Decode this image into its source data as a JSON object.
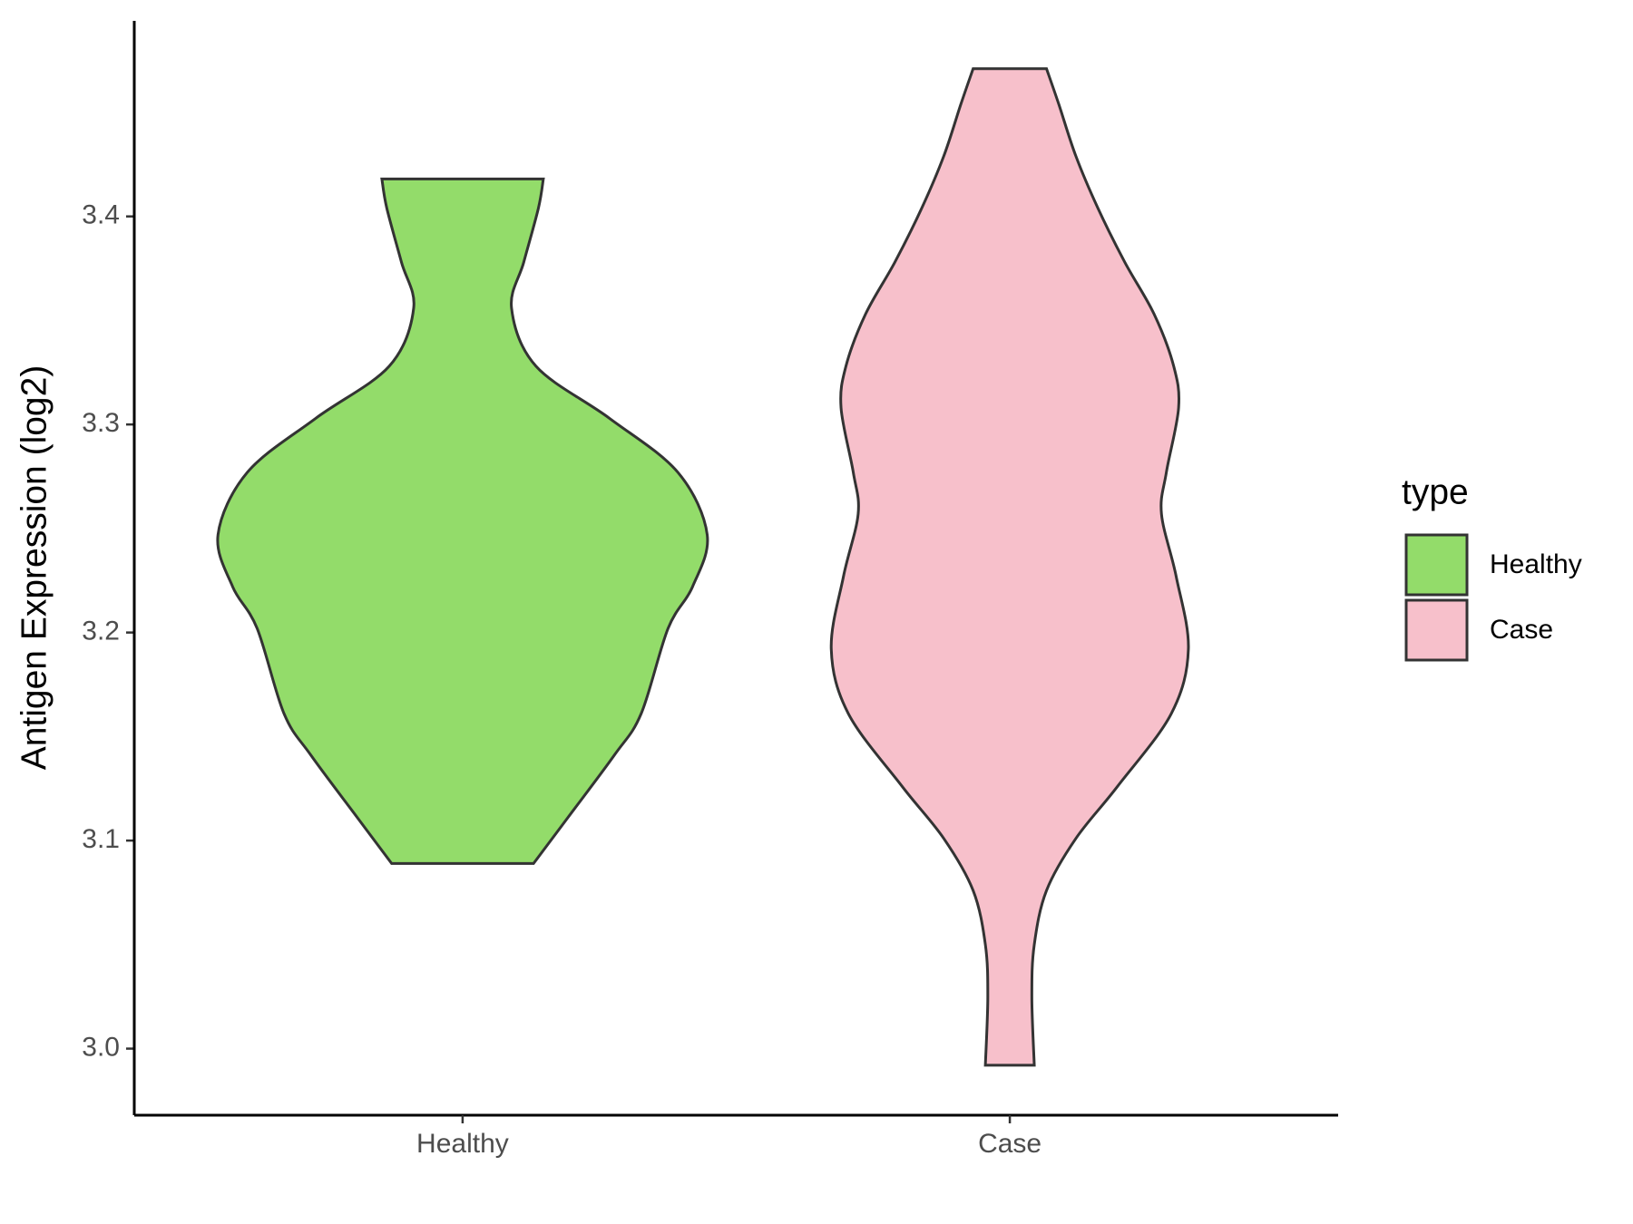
{
  "chart_data": {
    "type": "violin",
    "y_label": "Antigen Expression (log2)",
    "categories": [
      "Healthy",
      "Case"
    ],
    "legend_title": "type",
    "legend_position": "right",
    "series": [
      {
        "name": "Healthy",
        "color": "#93dc6a",
        "y": [
          3.418,
          3.404,
          3.378,
          3.356,
          3.328,
          3.303,
          3.277,
          3.247,
          3.222,
          3.202,
          3.161,
          3.141,
          3.111,
          3.089
        ],
        "widths": [
          0.33,
          0.31,
          0.25,
          0.2,
          0.3,
          0.6,
          0.88,
          1.0,
          0.94,
          0.84,
          0.73,
          0.62,
          0.43,
          0.29
        ]
      },
      {
        "name": "Case",
        "color": "#f7c0cb",
        "y": [
          3.471,
          3.454,
          3.429,
          3.404,
          3.378,
          3.353,
          3.328,
          3.308,
          3.277,
          3.257,
          3.227,
          3.192,
          3.161,
          3.126,
          3.101,
          3.076,
          3.05,
          3.025,
          2.992
        ],
        "widths": [
          0.15,
          0.2,
          0.27,
          0.36,
          0.47,
          0.59,
          0.67,
          0.69,
          0.64,
          0.62,
          0.68,
          0.73,
          0.66,
          0.44,
          0.27,
          0.15,
          0.1,
          0.09,
          0.1
        ]
      }
    ],
    "ylim": [
      2.968,
      3.494
    ],
    "yticks": [
      {
        "value": 3.0,
        "label": "3.0"
      },
      3.1,
      3.2,
      3.3,
      3.4
    ]
  }
}
